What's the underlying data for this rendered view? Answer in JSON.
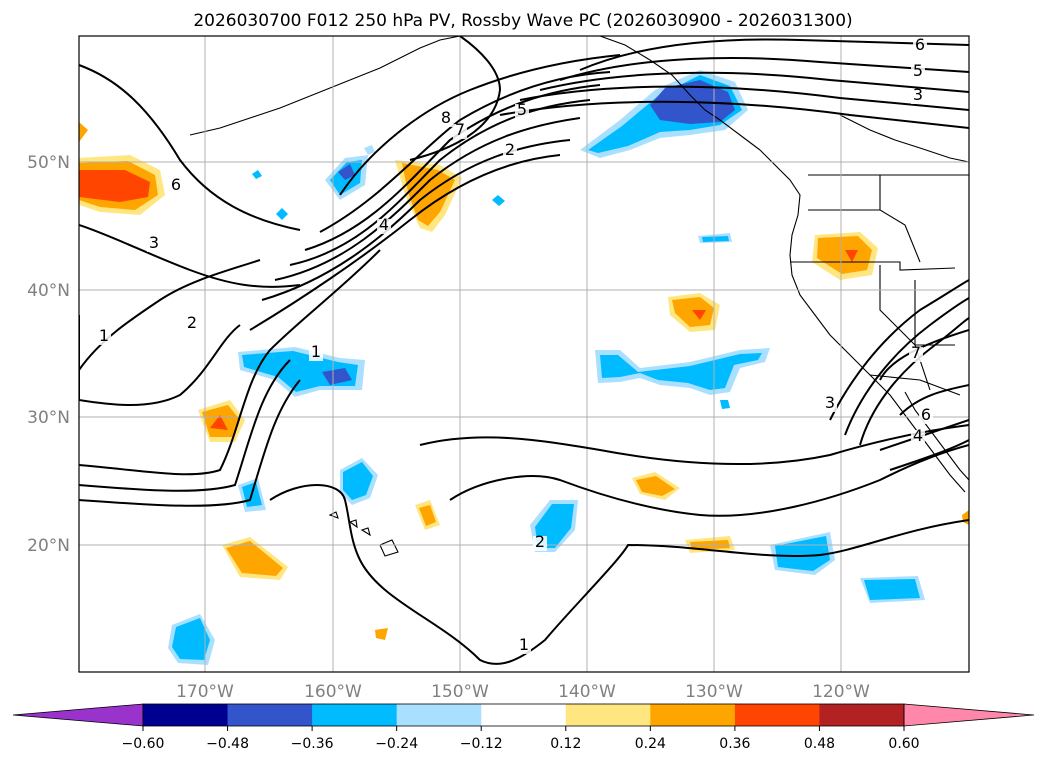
{
  "title": "2026030700 F012 250 hPa PV, Rossby Wave PC (2026030900 - 2026031300)",
  "lat_labels": [
    "50°N",
    "40°N",
    "30°N",
    "20°N"
  ],
  "lon_labels": [
    "170°W",
    "160°W",
    "150°W",
    "140°W",
    "130°W",
    "120°W"
  ],
  "contour_labels": [
    "6",
    "5",
    "3",
    "8",
    "7",
    "5",
    "2",
    "6",
    "3",
    "4",
    "1",
    "2",
    "1",
    "3",
    "7",
    "6",
    "4",
    "2",
    "1"
  ],
  "colorbar": {
    "tick_labels": [
      "−0.60",
      "−0.48",
      "−0.36",
      "−0.24",
      "−0.12",
      "0.12",
      "0.24",
      "0.36",
      "0.48",
      "0.60"
    ],
    "colors": [
      "#9933cc",
      "#000090",
      "#3355cc",
      "#00bbff",
      "#aae0ff",
      "#ffffff",
      "#ffe680",
      "#ffa500",
      "#ff4500",
      "#b22222",
      "#ff88aa"
    ]
  },
  "colors": {
    "gridline": "#b0b0b0",
    "tick_label": "#808080",
    "contour": "#000000",
    "coast": "#000000"
  }
}
